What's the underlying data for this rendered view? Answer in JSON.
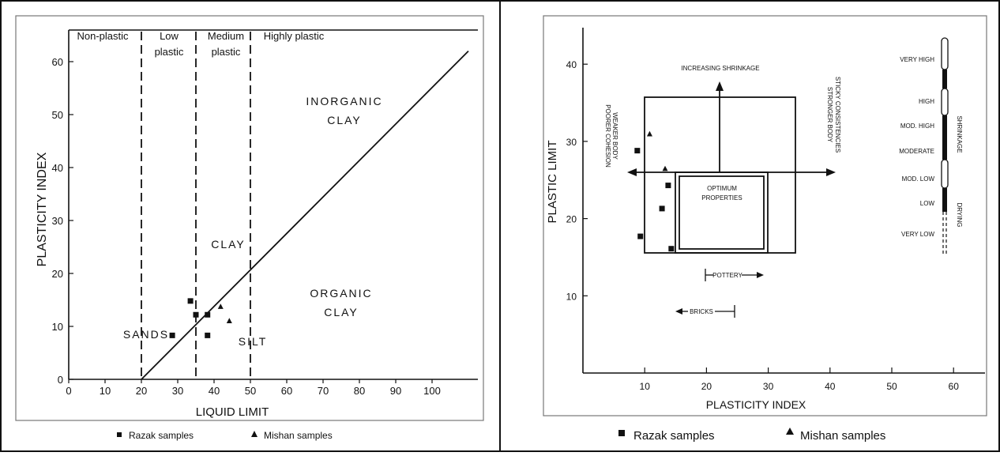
{
  "chart_data": [
    {
      "type": "scatter",
      "title": "",
      "xlabel": "LIQUID LIMIT",
      "ylabel": "PLASTICITY INDEX",
      "xlim": [
        0,
        110
      ],
      "ylim": [
        0,
        65
      ],
      "xticks": [
        "0",
        "10",
        "20",
        "30",
        "40",
        "50",
        "60",
        "70",
        "80",
        "90",
        "100"
      ],
      "yticks": [
        "0",
        "10",
        "20",
        "30",
        "40",
        "50",
        "60"
      ],
      "zones": [
        "Non-plastic",
        "Low",
        "plastic",
        "Medium",
        "plastic",
        "Highly plastic"
      ],
      "zone_boundaries": [
        20,
        35,
        50
      ],
      "a_line": {
        "from": [
          20,
          0
        ],
        "to": [
          110,
          62
        ]
      },
      "region_labels": [
        "INORGANIC",
        "CLAY",
        "CLAY",
        "ORGANIC",
        "CLAY",
        "SANDS",
        "SILT"
      ],
      "series": [
        {
          "name": "Razak samples",
          "marker": "square",
          "points": [
            [
              28.5,
              8.3
            ],
            [
              33.5,
              14.8
            ],
            [
              35,
              12.2
            ],
            [
              38.2,
              12.2
            ],
            [
              38.2,
              8.3
            ]
          ]
        },
        {
          "name": "Mishan samples",
          "marker": "triangle",
          "points": [
            [
              41.8,
              13.8
            ],
            [
              44.2,
              11.1
            ]
          ]
        }
      ],
      "legend": [
        "Razak samples",
        "Mishan samples"
      ],
      "legend_position": "bottom"
    },
    {
      "type": "scatter",
      "title": "",
      "xlabel": "PLASTICITY INDEX",
      "ylabel": "PLASTIC LIMIT",
      "xlim": [
        0,
        65
      ],
      "ylim": [
        0,
        45
      ],
      "xticks": [
        "10",
        "20",
        "30",
        "40",
        "50",
        "60"
      ],
      "yticks": [
        "10",
        "20",
        "30",
        "40"
      ],
      "annotations": {
        "increasing_shrinkage": "INCREASING SHRINKAGE",
        "left_side_1": "POORER COHESION",
        "left_side_2": "WEAKER BODY",
        "right_side_1": "STICKY CONSISTENCIES",
        "right_side_2": "STRONGER BODY",
        "optimum_1": "OPTIMUM",
        "optimum_2": "PROPERTIES",
        "pottery": "POTTERY",
        "bricks": "BRICKS"
      },
      "shrinkage_scale": [
        "VERY HIGH",
        "HIGH",
        "MOD. HIGH",
        "MODERATE",
        "MOD. LOW",
        "LOW",
        "VERY LOW"
      ],
      "shrinkage_scale_title_1": "SHRINKAGE",
      "shrinkage_scale_title_2": "DRYING",
      "series": [
        {
          "name": "Razak samples",
          "marker": "square",
          "points": [
            [
              8.8,
              28.8
            ],
            [
              13.8,
              24.3
            ],
            [
              12.8,
              21.3
            ],
            [
              9.3,
              17.7
            ],
            [
              14.3,
              16.1
            ]
          ]
        },
        {
          "name": "Mishan samples",
          "marker": "triangle",
          "points": [
            [
              10.8,
              31
            ],
            [
              13.3,
              26.5
            ]
          ]
        }
      ],
      "legend": [
        "Razak samples",
        "Mishan samples"
      ],
      "legend_position": "bottom"
    }
  ]
}
